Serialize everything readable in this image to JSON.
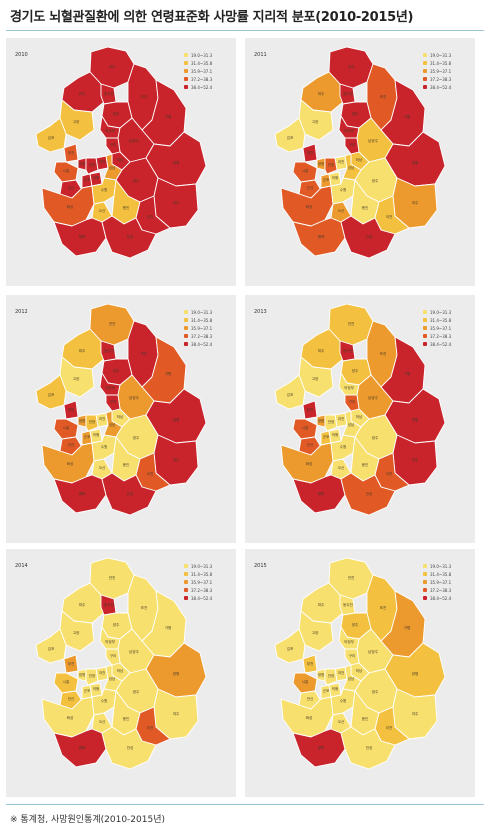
{
  "title": "경기도 뇌혈관질환에 의한 연령표준화 사망률 지리적 분포(2010-2015년)",
  "source": "※ 통계청, 사망원인통계(2010-2015년)",
  "legend": [
    {
      "label": "19.0~31.3",
      "color": "#f7e06e"
    },
    {
      "label": "31.4~35.8",
      "color": "#f3c13f"
    },
    {
      "label": "35.9~37.1",
      "color": "#ec9a2d"
    },
    {
      "label": "37.2~38.3",
      "color": "#e15a26"
    },
    {
      "label": "38.4~52.4",
      "color": "#c9232b"
    }
  ],
  "regions": [
    "연천",
    "포천",
    "파주",
    "동두천",
    "양주",
    "가평",
    "고양",
    "의정부",
    "남양주",
    "양평",
    "김포",
    "구리",
    "하남",
    "부천",
    "광명",
    "과천",
    "시흥",
    "안양",
    "성남",
    "안산",
    "군포",
    "의왕",
    "광주",
    "여주",
    "화성",
    "수원",
    "용인",
    "이천",
    "오산",
    "평택",
    "안성"
  ],
  "maps": [
    {
      "year": "2010",
      "levels": [
        5,
        5,
        5,
        5,
        5,
        5,
        2,
        5,
        5,
        5,
        2,
        5,
        5,
        4,
        5,
        5,
        4,
        5,
        3,
        5,
        5,
        5,
        5,
        5,
        4,
        2,
        2,
        5,
        2,
        5,
        5
      ]
    },
    {
      "year": "2011",
      "levels": [
        5,
        4,
        3,
        5,
        5,
        5,
        1,
        5,
        2,
        5,
        1,
        5,
        2,
        5,
        3,
        1,
        4,
        4,
        2,
        4,
        3,
        1,
        1,
        3,
        4,
        1,
        1,
        2,
        3,
        4,
        5
      ]
    },
    {
      "year": "2012",
      "levels": [
        3,
        5,
        2,
        5,
        5,
        4,
        1,
        5,
        3,
        5,
        2,
        5,
        1,
        5,
        3,
        1,
        4,
        2,
        3,
        4,
        3,
        1,
        1,
        5,
        3,
        1,
        1,
        4,
        1,
        5,
        5
      ]
    },
    {
      "year": "2013",
      "levels": [
        2,
        3,
        2,
        5,
        2,
        5,
        1,
        1,
        3,
        5,
        1,
        4,
        1,
        5,
        3,
        1,
        4,
        1,
        1,
        4,
        2,
        1,
        1,
        5,
        3,
        1,
        1,
        4,
        1,
        5,
        4
      ]
    },
    {
      "year": "2014",
      "levels": [
        1,
        1,
        1,
        5,
        1,
        1,
        1,
        1,
        1,
        3,
        1,
        1,
        1,
        3,
        1,
        1,
        2,
        1,
        1,
        2,
        1,
        1,
        1,
        1,
        1,
        1,
        1,
        4,
        1,
        5,
        1
      ]
    },
    {
      "year": "2015",
      "levels": [
        1,
        2,
        1,
        1,
        2,
        3,
        1,
        1,
        1,
        2,
        1,
        1,
        1,
        2,
        1,
        1,
        3,
        1,
        1,
        1,
        1,
        1,
        1,
        1,
        1,
        1,
        1,
        2,
        1,
        5,
        1
      ]
    }
  ]
}
